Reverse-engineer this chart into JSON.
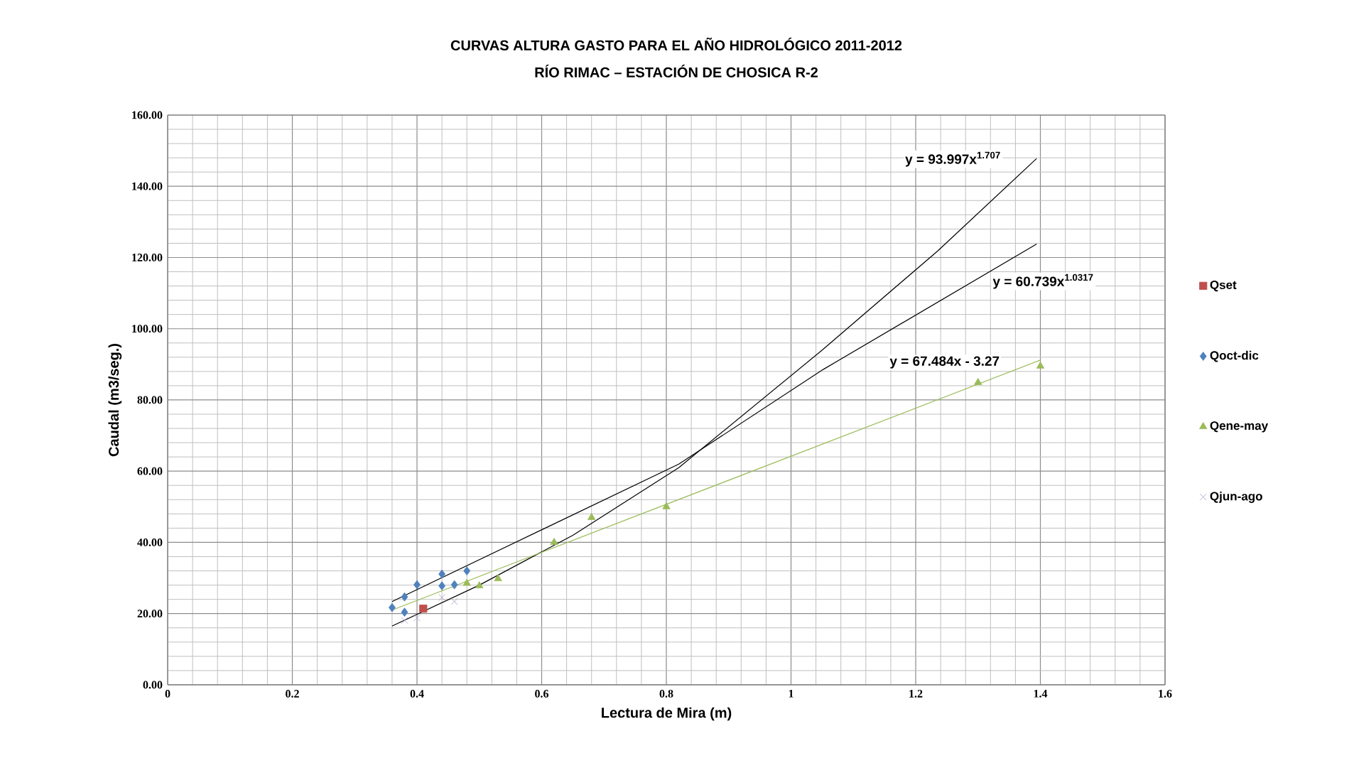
{
  "chart_data": {
    "type": "scatter",
    "title": "CURVAS ALTURA GASTO PARA EL AÑO HIDROLÓGICO 2011-2012",
    "subtitle": "RÍO RIMAC – ESTACIÓN DE CHOSICA R-2",
    "xlabel": "Lectura de Mira (m)",
    "ylabel": "Caudal (m3/seg.)",
    "xlim": [
      0,
      1.6
    ],
    "ylim": [
      0,
      160
    ],
    "xticks": [
      0,
      0.2,
      0.4,
      0.6,
      0.8,
      1,
      1.2,
      1.4,
      1.6
    ],
    "yticks": [
      {
        "value": 0,
        "label": "0.00"
      },
      {
        "value": 20,
        "label": "20.00"
      },
      {
        "value": 40,
        "label": "40.00"
      },
      {
        "value": 60,
        "label": "60.00"
      },
      {
        "value": 80,
        "label": "80.00"
      },
      {
        "value": 100,
        "label": "100.00"
      },
      {
        "value": 120,
        "label": "120.00"
      },
      {
        "value": 140,
        "label": "140.00"
      },
      {
        "value": 160,
        "label": "160.00"
      }
    ],
    "grid": true,
    "legend": "right",
    "series": [
      {
        "name": "Qset",
        "marker": "square",
        "color": "#c0504d",
        "x": [
          0.41
        ],
        "values": [
          21.4
        ]
      },
      {
        "name": "Qoct-dic",
        "marker": "diamond",
        "color": "#4f81bd",
        "x": [
          0.36,
          0.38,
          0.4,
          0.38,
          0.44,
          0.44,
          0.46,
          0.48
        ],
        "values": [
          21.7,
          24.7,
          28.1,
          20.4,
          31.1,
          27.8,
          28.1,
          32.0
        ]
      },
      {
        "name": "Qene-may",
        "marker": "triangle",
        "color": "#9bbb59",
        "x": [
          0.48,
          0.5,
          0.53,
          0.62,
          0.68,
          0.8,
          1.3,
          1.4
        ],
        "values": [
          28.5,
          27.8,
          29.8,
          40,
          47,
          50,
          84.9,
          89.5
        ]
      },
      {
        "name": "Qjun-ago",
        "marker": "cross",
        "color": "#a99bc4",
        "x": [
          0.38,
          0.4,
          0.44,
          0.46
        ],
        "values": [
          18.1,
          18.8,
          24.5,
          23.4
        ]
      },
      {
        "type": "line",
        "color": "#000000",
        "x": [
          0.36,
          0.5,
          0.65,
          0.82,
          1.05,
          1.235,
          1.394
        ],
        "values": [
          16.5,
          28,
          42,
          61,
          94,
          121.8,
          147.8
        ]
      },
      {
        "type": "line",
        "color": "#000000",
        "x": [
          0.36,
          0.82,
          1.052,
          1.394
        ],
        "values": [
          23.4,
          62,
          88.6,
          123.8
        ]
      },
      {
        "type": "line",
        "color": "#9bbb59",
        "x": [
          0.36,
          1.4
        ],
        "values": [
          21.0,
          91.2
        ]
      }
    ],
    "annotations": [
      "y = 93.997x$^{1.707}$",
      "y = 60.739x$^{1.0317}$",
      "y = 67.484x - 3.27"
    ]
  }
}
